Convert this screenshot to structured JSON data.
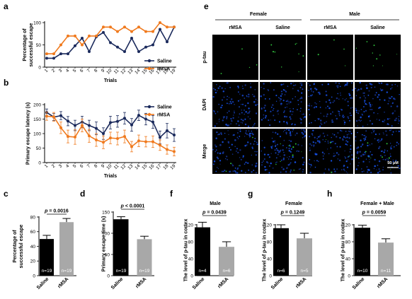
{
  "panel_labels": [
    "a",
    "b",
    "c",
    "d",
    "e",
    "f",
    "g",
    "h"
  ],
  "colors": {
    "saline": "#1b2a5c",
    "rmsa": "#f07a1e",
    "bar_rmsa": "#a8a8a8",
    "bar_saline": "#000000"
  },
  "micrograph": {
    "sex_headers": [
      "Female",
      "Male"
    ],
    "col_headers": [
      "rMSA",
      "Saline",
      "rMSA",
      "Saline"
    ],
    "row_headers": [
      "p-tau",
      "DAPI",
      "Merge"
    ],
    "scale_bar": "50 μM"
  },
  "chart_data": [
    {
      "type": "line",
      "id": "a",
      "xlabel": "Trials",
      "ylabel": "Percentage of\nsuccessful escape",
      "ylim": [
        0,
        100
      ],
      "yticks": [
        0,
        50,
        100
      ],
      "x": [
        1,
        2,
        3,
        4,
        5,
        6,
        7,
        8,
        9,
        10,
        11,
        12,
        13,
        14,
        15,
        16,
        17,
        18,
        19
      ],
      "series": [
        {
          "name": "Saline",
          "values": [
            20,
            20,
            30,
            30,
            48,
            65,
            35,
            68,
            78,
            55,
            45,
            35,
            65,
            35,
            45,
            50,
            85,
            57,
            90
          ]
        },
        {
          "name": "rMSA",
          "values": [
            30,
            30,
            50,
            70,
            70,
            50,
            70,
            70,
            90,
            90,
            80,
            90,
            80,
            90,
            80,
            80,
            100,
            90,
            90
          ]
        }
      ],
      "legend": "bottom-right"
    },
    {
      "type": "line",
      "id": "b",
      "xlabel": "Trials",
      "ylabel": "Primary escape latency (s)",
      "ylim": [
        0,
        200
      ],
      "yticks": [
        0,
        50,
        100,
        150,
        200
      ],
      "x": [
        1,
        2,
        3,
        4,
        5,
        6,
        7,
        8,
        9,
        10,
        11,
        12,
        13,
        14,
        15,
        16,
        17,
        18,
        19
      ],
      "series": [
        {
          "name": "Saline",
          "values": [
            173,
            157,
            162,
            143,
            128,
            140,
            128,
            118,
            100,
            138,
            142,
            153,
            130,
            163,
            150,
            140,
            87,
            110,
            95
          ],
          "errors": [
            12,
            12,
            14,
            16,
            18,
            20,
            18,
            22,
            20,
            22,
            20,
            20,
            22,
            18,
            20,
            22,
            22,
            25,
            22
          ]
        },
        {
          "name": "rMSA",
          "values": [
            160,
            158,
            120,
            90,
            88,
            128,
            92,
            78,
            70,
            85,
            83,
            90,
            55,
            75,
            72,
            72,
            60,
            45,
            38
          ],
          "errors": [
            14,
            15,
            20,
            22,
            25,
            22,
            22,
            22,
            22,
            20,
            22,
            22,
            18,
            20,
            18,
            20,
            18,
            16,
            15
          ]
        }
      ],
      "legend": "top-right"
    },
    {
      "type": "bar",
      "id": "c",
      "ylabel": "Percentage of\nsuccessful escape",
      "ylim": [
        0,
        80
      ],
      "yticks": [
        0,
        20,
        40,
        60,
        80
      ],
      "categories": [
        "Saline",
        "rMSA"
      ],
      "values": [
        50,
        73
      ],
      "errors": [
        5,
        5
      ],
      "n_labels": [
        "n=19",
        "n=19"
      ],
      "p_value": "p = 0.0016"
    },
    {
      "type": "bar",
      "id": "d",
      "ylabel": "Primary escape time (s)",
      "ylim": [
        0,
        150
      ],
      "yticks": [
        0,
        50,
        100,
        150
      ],
      "categories": [
        "Saline",
        "rMSA"
      ],
      "values": [
        133,
        86
      ],
      "errors": [
        6,
        7
      ],
      "n_labels": [
        "n=19",
        "n=19"
      ],
      "p_value": "p < 0.0001"
    },
    {
      "type": "bar",
      "id": "f",
      "title": "Male",
      "ylabel": "The level of p-tau in cortex",
      "ylim": [
        0,
        120
      ],
      "yticks": [
        0,
        40,
        80,
        120
      ],
      "categories": [
        "Saline",
        "rMSA"
      ],
      "values": [
        114,
        68
      ],
      "errors": [
        12,
        12
      ],
      "n_labels": [
        "n=4",
        "n=6"
      ],
      "p_value": "p = 0.0439"
    },
    {
      "type": "bar",
      "id": "g",
      "title": "Female",
      "ylabel": "The level of p-tau in cortex",
      "ylim": [
        0,
        120
      ],
      "yticks": [
        0,
        40,
        80,
        120
      ],
      "categories": [
        "Saline",
        "rMSA"
      ],
      "values": [
        112,
        88
      ],
      "errors": [
        8,
        12
      ],
      "n_labels": [
        "n=6",
        "n=5"
      ],
      "p_value": "p = 0.1249"
    },
    {
      "type": "bar",
      "id": "h",
      "title": "Female + Male",
      "ylabel": "The level of p-tau in cortex",
      "ylim": [
        0,
        120
      ],
      "yticks": [
        0,
        40,
        80,
        120
      ],
      "categories": [
        "Saline",
        "rMSA"
      ],
      "values": [
        113,
        78
      ],
      "errors": [
        6,
        9
      ],
      "n_labels": [
        "n=10",
        "n=11"
      ],
      "p_value": "p = 0.0059"
    }
  ]
}
